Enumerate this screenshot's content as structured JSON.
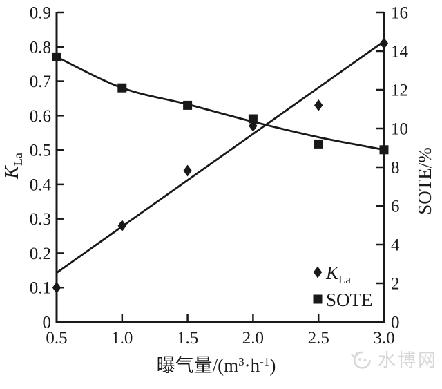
{
  "figure": {
    "background": "#ffffff",
    "ink_color": "#191919"
  },
  "watermark": {
    "icon": "droplet-face-logo-icon",
    "text": "水博网",
    "color": "#d7d7d7"
  },
  "chart_data": {
    "type": "line",
    "grid": false,
    "legend_position": "inside-bottom-right",
    "x": [
      0.5,
      1.0,
      1.5,
      2.0,
      2.5,
      3.0
    ],
    "x_axis": {
      "title": "曝气量/(m³·h⁻¹)",
      "min": 0.5,
      "max": 3.0,
      "tick_values": [
        0.5,
        1.0,
        1.5,
        2.0,
        2.5,
        3.0
      ],
      "tick_labels": [
        "0.5",
        "1.0",
        "1.5",
        "2.0",
        "2.5",
        "3.0"
      ]
    },
    "left_axis": {
      "title": {
        "text": "K",
        "subscript": "La",
        "italic": true
      },
      "min": 0,
      "max": 0.9,
      "tick_values": [
        0,
        0.1,
        0.2,
        0.3,
        0.4,
        0.5,
        0.6,
        0.7,
        0.8,
        0.9
      ],
      "tick_labels": [
        "0",
        "0.1",
        "0.2",
        "0.3",
        "0.4",
        "0.5",
        "0.6",
        "0.7",
        "0.8",
        "0.9"
      ]
    },
    "right_axis": {
      "title": "SOTE/%",
      "min": 0,
      "max": 16,
      "tick_values": [
        0,
        2,
        4,
        6,
        8,
        10,
        12,
        14,
        16
      ],
      "tick_labels": [
        "0",
        "2",
        "4",
        "6",
        "8",
        "10",
        "12",
        "14",
        "16"
      ]
    },
    "series": [
      {
        "name": "KLa",
        "legend": {
          "text": "K",
          "subscript": "La",
          "italic": true
        },
        "axis": "left",
        "marker": "diamond",
        "values": [
          0.1,
          0.28,
          0.44,
          0.57,
          0.63,
          0.81
        ],
        "trendline": {
          "shape": "straight",
          "points": [
            [
              0.5,
              0.143
            ],
            [
              3.0,
              0.816
            ]
          ]
        }
      },
      {
        "name": "SOTE",
        "legend": {
          "text": "SOTE"
        },
        "axis": "right",
        "marker": "square",
        "values": [
          13.7,
          12.1,
          11.2,
          10.5,
          9.2,
          8.9
        ],
        "trendline": {
          "shape": "smooth",
          "points": [
            [
              0.5,
              13.7
            ],
            [
              1.0,
              12.1
            ],
            [
              1.5,
              11.25
            ],
            [
              2.0,
              10.35
            ],
            [
              2.5,
              9.55
            ],
            [
              3.0,
              8.9
            ]
          ]
        }
      }
    ]
  }
}
